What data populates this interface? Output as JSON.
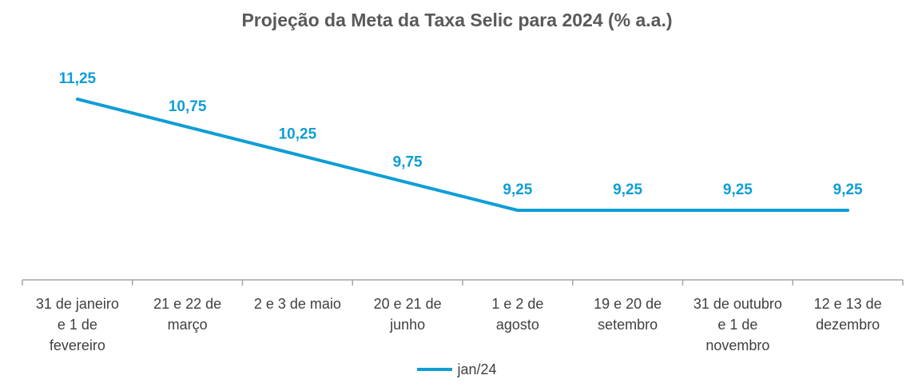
{
  "chart_data": {
    "type": "line",
    "title": "Projeção da Meta da Taxa Selic para 2024 (% a.a.)",
    "xlabel": "",
    "ylabel": "",
    "categories": [
      "31 de janeiro e 1 de fevereiro",
      "21 e 22 de março",
      "2 e 3 de maio",
      "20 e 21 de junho",
      "1 e 2 de agosto",
      "19 e 20 de setembro",
      "31 de outubro e 1 de novembro",
      "12 e 13 de dezembro"
    ],
    "category_lines": [
      [
        "31 de janeiro",
        "e 1 de",
        "fevereiro"
      ],
      [
        "21 e 22 de",
        "março"
      ],
      [
        "2 e 3 de maio"
      ],
      [
        "20 e 21 de",
        "junho"
      ],
      [
        "1 e 2 de",
        "agosto"
      ],
      [
        "19 e 20 de",
        "setembro"
      ],
      [
        "31 de outubro",
        "e 1 de",
        "novembro"
      ],
      [
        "12 e 13 de",
        "dezembro"
      ]
    ],
    "series": [
      {
        "name": "jan/24",
        "values": [
          11.25,
          10.75,
          10.25,
          9.75,
          9.25,
          9.25,
          9.25,
          9.25
        ],
        "labels": [
          "11,25",
          "10,75",
          "10,25",
          "9,75",
          "9,25",
          "9,25",
          "9,25",
          "9,25"
        ],
        "color": "#0f9ed5"
      }
    ],
    "ylim": [
      8.0,
      12.0
    ],
    "grid": false,
    "legend": "bottom"
  }
}
